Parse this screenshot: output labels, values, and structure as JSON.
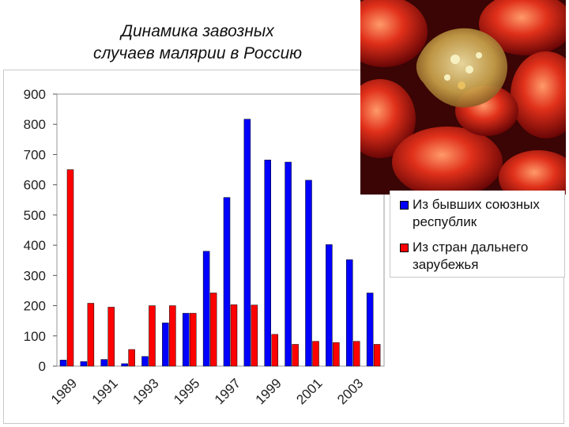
{
  "title_line1": "Динамика завозных",
  "title_line2": "случаев малярии в Россию",
  "chart_data": {
    "type": "bar",
    "categories": [
      "1989",
      "1990",
      "1991",
      "1992",
      "1993",
      "1994",
      "1995",
      "1996",
      "1997",
      "1998",
      "1999",
      "2000",
      "2001",
      "2002",
      "2003",
      "2004"
    ],
    "x_tick_labels": [
      "1989",
      "1991",
      "1993",
      "1995",
      "1997",
      "1999",
      "2001",
      "2003"
    ],
    "series": [
      {
        "name": "Из бывших союзных республик",
        "color": "#0000ff",
        "values": [
          20,
          15,
          22,
          8,
          32,
          143,
          175,
          380,
          558,
          817,
          682,
          675,
          615,
          402,
          352,
          242
        ]
      },
      {
        "name": "Из стран дальнего зарубежья",
        "color": "#ff0000",
        "values": [
          650,
          208,
          195,
          55,
          200,
          200,
          175,
          242,
          203,
          202,
          105,
          72,
          82,
          78,
          82,
          72
        ]
      }
    ],
    "ylim": [
      0,
      900
    ],
    "yticks": [
      0,
      100,
      200,
      300,
      400,
      500,
      600,
      700,
      800,
      900
    ],
    "grid": false,
    "legend_position": "right"
  },
  "legend": {
    "item1_line1": "Из бывших союзных",
    "item1_line2": "республик",
    "item2_line1": "Из стран дальнего",
    "item2_line2": "зарубежья",
    "item1_color": "#0000ff",
    "item2_color": "#ff0000"
  }
}
